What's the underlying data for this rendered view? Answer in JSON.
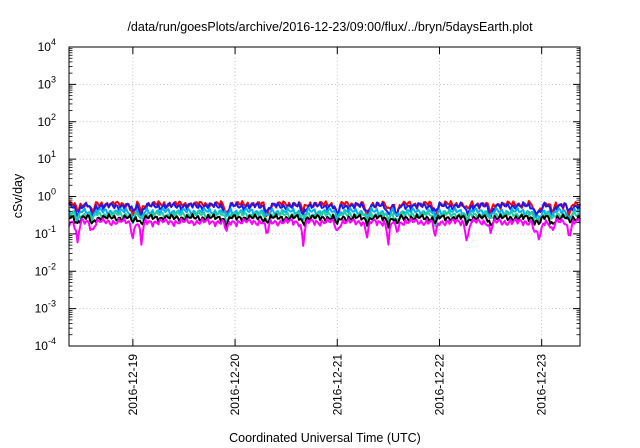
{
  "chart_data": {
    "type": "line",
    "title": "/data/run/goesPlots/archive/2016-12-23/09:00/flux/../bryn/5daysEarth.plot",
    "xlabel": "Coordinated Universal Time (UTC)",
    "ylabel": "cSv/day",
    "yscale": "log",
    "ylim": [
      0.0001,
      10000
    ],
    "xlim": [
      "2016-12-18T09:00",
      "2016-12-23T09:00"
    ],
    "y_ticks": [
      {
        "base": "10",
        "exp": "-4",
        "value": 0.0001
      },
      {
        "base": "10",
        "exp": "-3",
        "value": 0.001
      },
      {
        "base": "10",
        "exp": "-2",
        "value": 0.01
      },
      {
        "base": "10",
        "exp": "-1",
        "value": 0.1
      },
      {
        "base": "10",
        "exp": "0",
        "value": 1
      },
      {
        "base": "10",
        "exp": "1",
        "value": 10
      },
      {
        "base": "10",
        "exp": "2",
        "value": 100
      },
      {
        "base": "10",
        "exp": "3",
        "value": 1000
      },
      {
        "base": "10",
        "exp": "4",
        "value": 10000
      }
    ],
    "x_ticks": [
      "2016-12-19",
      "2016-12-20",
      "2016-12-21",
      "2016-12-22",
      "2016-12-23"
    ],
    "grid": true,
    "legend": "none",
    "series": [
      {
        "color": "#ff0000",
        "base": 0.62,
        "dip_depth": 0.55
      },
      {
        "color": "#1a1aee",
        "base": 0.56,
        "dip_depth": 0.5
      },
      {
        "color": "#00b0f0",
        "base": 0.4,
        "dip_depth": 0.45
      },
      {
        "color": "#20d0a0",
        "base": 0.33,
        "dip_depth": 0.4
      },
      {
        "color": "#000000",
        "base": 0.27,
        "dip_depth": 0.35
      },
      {
        "color": "#ff00ff",
        "base": 0.21,
        "dip_depth": 0.75
      }
    ],
    "dip_times": [
      "2016-12-18T11:00",
      "2016-12-18T14:30",
      "2016-12-19T00:00",
      "2016-12-19T02:00",
      "2016-12-19T22:00",
      "2016-12-20T07:30",
      "2016-12-20T16:00",
      "2016-12-21T00:00",
      "2016-12-21T07:00",
      "2016-12-21T12:00",
      "2016-12-21T14:00",
      "2016-12-21T23:00",
      "2016-12-22T06:30",
      "2016-12-22T12:00",
      "2016-12-22T22:30",
      "2016-12-22T23:30",
      "2016-12-23T02:30",
      "2016-12-23T06:30"
    ]
  }
}
